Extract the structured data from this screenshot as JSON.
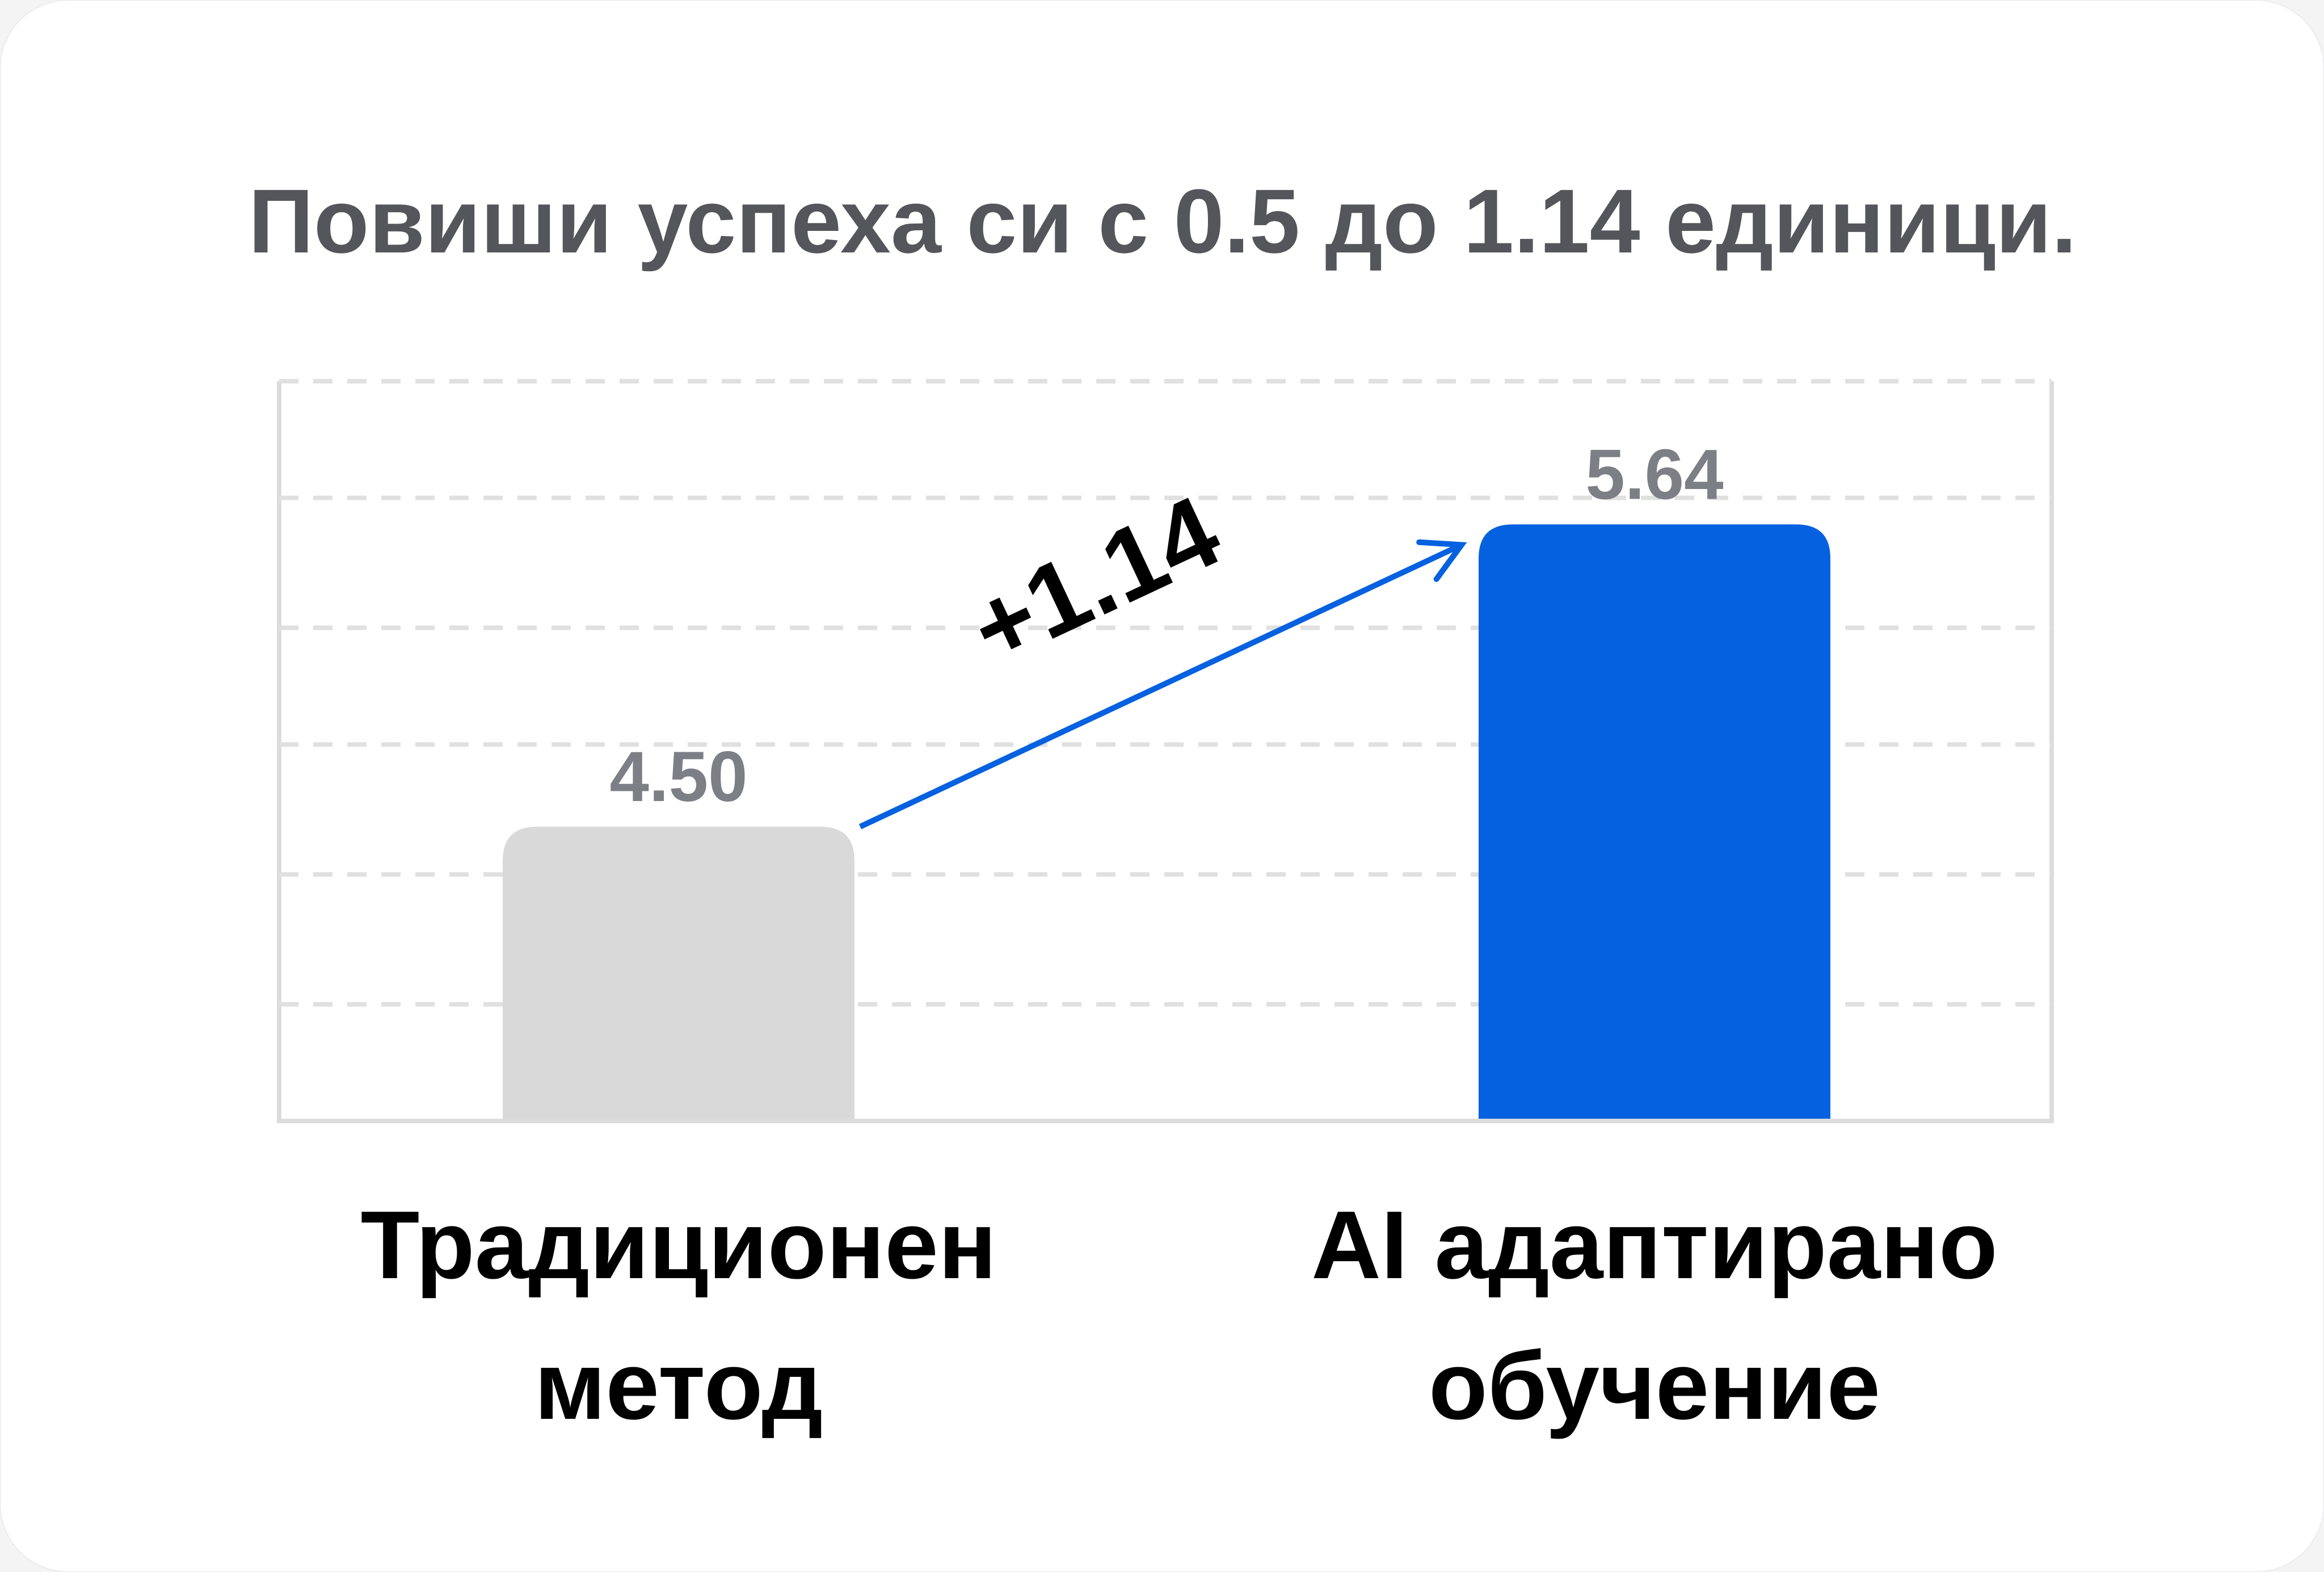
{
  "chart_data": {
    "type": "bar",
    "title": "Повиши успеха си с 0.5 до 1.14 единици.",
    "categories": [
      "Традиционен метод",
      "AI адаптирано обучение"
    ],
    "values": [
      4.5,
      5.64
    ],
    "value_labels": [
      "4.50",
      "5.64"
    ],
    "colors": [
      "#d9d9d9",
      "#0561e0"
    ],
    "annotation": "+1.14",
    "ylim": [
      3.39,
      6.18
    ],
    "yticks": [
      3.83,
      4.32,
      4.81,
      5.25,
      5.74,
      6.18
    ],
    "grid": true
  }
}
